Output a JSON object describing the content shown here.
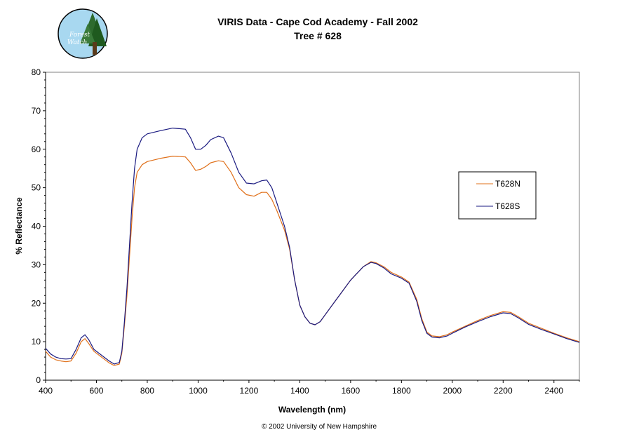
{
  "chart_data": {
    "type": "line",
    "title": "VIRIS Data - Cape Cod Academy - Fall 2002",
    "subtitle": "Tree # 628",
    "xlabel": "Wavelength (nm)",
    "ylabel": "% Reflectance",
    "xlim": [
      400,
      2500
    ],
    "ylim": [
      0,
      80
    ],
    "x_ticks": [
      400,
      600,
      800,
      1000,
      1200,
      1400,
      1600,
      1800,
      2000,
      2200,
      2400
    ],
    "y_ticks": [
      0,
      10,
      20,
      30,
      40,
      50,
      60,
      70,
      80
    ],
    "grid": false,
    "legend_position": "right",
    "series": [
      {
        "name": "T628N",
        "color": "#e0701a",
        "points": [
          [
            400,
            7.5
          ],
          [
            420,
            6.0
          ],
          [
            440,
            5.3
          ],
          [
            460,
            5.0
          ],
          [
            480,
            4.8
          ],
          [
            500,
            5.0
          ],
          [
            520,
            7.0
          ],
          [
            540,
            10.0
          ],
          [
            555,
            10.8
          ],
          [
            570,
            9.5
          ],
          [
            590,
            7.5
          ],
          [
            610,
            6.5
          ],
          [
            630,
            5.5
          ],
          [
            650,
            4.5
          ],
          [
            670,
            3.8
          ],
          [
            690,
            4.2
          ],
          [
            700,
            7.0
          ],
          [
            710,
            14.0
          ],
          [
            720,
            22.0
          ],
          [
            730,
            32.0
          ],
          [
            740,
            42.0
          ],
          [
            750,
            50.0
          ],
          [
            760,
            54.0
          ],
          [
            780,
            56.0
          ],
          [
            800,
            56.8
          ],
          [
            850,
            57.6
          ],
          [
            900,
            58.2
          ],
          [
            950,
            58.0
          ],
          [
            970,
            56.5
          ],
          [
            990,
            54.5
          ],
          [
            1010,
            54.8
          ],
          [
            1030,
            55.5
          ],
          [
            1050,
            56.5
          ],
          [
            1080,
            57.0
          ],
          [
            1100,
            56.8
          ],
          [
            1130,
            54.0
          ],
          [
            1160,
            50.0
          ],
          [
            1190,
            48.2
          ],
          [
            1220,
            47.8
          ],
          [
            1250,
            48.8
          ],
          [
            1270,
            48.8
          ],
          [
            1290,
            47.0
          ],
          [
            1310,
            44.0
          ],
          [
            1340,
            39.0
          ],
          [
            1360,
            34.0
          ],
          [
            1380,
            26.0
          ],
          [
            1400,
            19.5
          ],
          [
            1420,
            16.5
          ],
          [
            1440,
            14.8
          ],
          [
            1460,
            14.4
          ],
          [
            1480,
            15.2
          ],
          [
            1500,
            17.0
          ],
          [
            1550,
            21.5
          ],
          [
            1600,
            26.0
          ],
          [
            1650,
            29.5
          ],
          [
            1680,
            30.8
          ],
          [
            1700,
            30.5
          ],
          [
            1730,
            29.5
          ],
          [
            1760,
            28.0
          ],
          [
            1800,
            26.8
          ],
          [
            1830,
            25.5
          ],
          [
            1860,
            21.0
          ],
          [
            1880,
            16.0
          ],
          [
            1900,
            12.5
          ],
          [
            1920,
            11.5
          ],
          [
            1950,
            11.3
          ],
          [
            1980,
            11.8
          ],
          [
            2000,
            12.5
          ],
          [
            2050,
            14.0
          ],
          [
            2100,
            15.5
          ],
          [
            2150,
            16.8
          ],
          [
            2200,
            17.8
          ],
          [
            2230,
            17.6
          ],
          [
            2260,
            16.5
          ],
          [
            2300,
            14.8
          ],
          [
            2350,
            13.5
          ],
          [
            2400,
            12.2
          ],
          [
            2450,
            11.0
          ],
          [
            2500,
            10.0
          ]
        ]
      },
      {
        "name": "T628S",
        "color": "#1a1a80",
        "points": [
          [
            400,
            8.3
          ],
          [
            420,
            6.8
          ],
          [
            440,
            6.0
          ],
          [
            460,
            5.6
          ],
          [
            480,
            5.5
          ],
          [
            500,
            5.6
          ],
          [
            520,
            8.0
          ],
          [
            540,
            11.0
          ],
          [
            555,
            11.8
          ],
          [
            570,
            10.5
          ],
          [
            590,
            8.0
          ],
          [
            610,
            7.0
          ],
          [
            630,
            6.0
          ],
          [
            650,
            5.0
          ],
          [
            670,
            4.2
          ],
          [
            690,
            4.6
          ],
          [
            700,
            7.5
          ],
          [
            710,
            15.0
          ],
          [
            720,
            24.0
          ],
          [
            730,
            35.0
          ],
          [
            740,
            46.0
          ],
          [
            750,
            55.0
          ],
          [
            760,
            60.0
          ],
          [
            780,
            63.0
          ],
          [
            800,
            64.0
          ],
          [
            850,
            64.8
          ],
          [
            900,
            65.5
          ],
          [
            950,
            65.2
          ],
          [
            970,
            63.0
          ],
          [
            990,
            60.0
          ],
          [
            1010,
            60.0
          ],
          [
            1030,
            61.0
          ],
          [
            1050,
            62.5
          ],
          [
            1080,
            63.4
          ],
          [
            1100,
            63.0
          ],
          [
            1130,
            59.0
          ],
          [
            1160,
            54.0
          ],
          [
            1190,
            51.2
          ],
          [
            1220,
            51.0
          ],
          [
            1250,
            51.8
          ],
          [
            1270,
            52.0
          ],
          [
            1290,
            50.0
          ],
          [
            1310,
            46.0
          ],
          [
            1340,
            40.0
          ],
          [
            1360,
            34.5
          ],
          [
            1380,
            26.0
          ],
          [
            1400,
            19.5
          ],
          [
            1420,
            16.5
          ],
          [
            1440,
            14.8
          ],
          [
            1460,
            14.4
          ],
          [
            1480,
            15.2
          ],
          [
            1500,
            17.0
          ],
          [
            1550,
            21.5
          ],
          [
            1600,
            26.0
          ],
          [
            1650,
            29.5
          ],
          [
            1680,
            30.6
          ],
          [
            1700,
            30.3
          ],
          [
            1730,
            29.2
          ],
          [
            1760,
            27.6
          ],
          [
            1800,
            26.5
          ],
          [
            1830,
            25.2
          ],
          [
            1860,
            20.5
          ],
          [
            1880,
            15.5
          ],
          [
            1900,
            12.2
          ],
          [
            1920,
            11.2
          ],
          [
            1950,
            11.0
          ],
          [
            1980,
            11.5
          ],
          [
            2000,
            12.2
          ],
          [
            2050,
            13.8
          ],
          [
            2100,
            15.2
          ],
          [
            2150,
            16.5
          ],
          [
            2200,
            17.5
          ],
          [
            2230,
            17.3
          ],
          [
            2260,
            16.2
          ],
          [
            2300,
            14.5
          ],
          [
            2350,
            13.2
          ],
          [
            2400,
            12.0
          ],
          [
            2450,
            10.8
          ],
          [
            2500,
            9.8
          ]
        ]
      }
    ]
  },
  "logo": {
    "line1": "Forest",
    "line2": "Watch"
  },
  "footer": "© 2002 University of New Hampshire"
}
